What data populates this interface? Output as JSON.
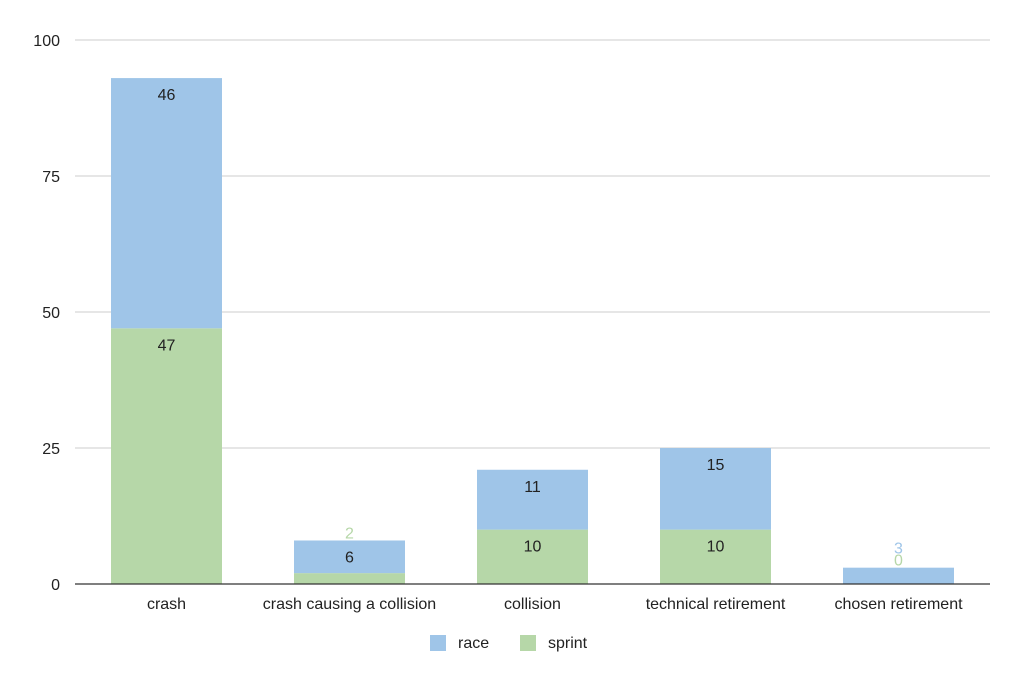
{
  "chart_data": {
    "type": "bar",
    "stacked": true,
    "categories": [
      "crash",
      "crash causing a collision",
      "collision",
      "technical retirement",
      "chosen retirement"
    ],
    "series": [
      {
        "name": "sprint",
        "values": [
          47,
          2,
          10,
          10,
          0
        ],
        "color": "#b6d7a8"
      },
      {
        "name": "race",
        "values": [
          46,
          6,
          11,
          15,
          3
        ],
        "color": "#9fc5e8"
      }
    ],
    "ylim": [
      0,
      100
    ],
    "yticks": [
      0,
      25,
      50,
      75,
      100
    ],
    "grid": true,
    "legend": "bottom",
    "legend_order": [
      "race",
      "sprint"
    ],
    "title": "",
    "xlabel": "",
    "ylabel": ""
  },
  "colors": {
    "race": "#9fc5e8",
    "sprint": "#b6d7a8",
    "grid": "#cccccc",
    "axis": "#333333",
    "text": "#222222"
  }
}
